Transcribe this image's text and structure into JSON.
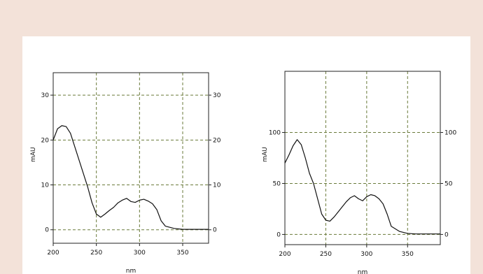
{
  "chart_data": [
    {
      "type": "line",
      "title": "",
      "xlabel": "nm",
      "ylabel": "mAU",
      "xlim": [
        200,
        380
      ],
      "ylim": [
        -3,
        35
      ],
      "xticks": [
        200,
        250,
        300,
        350
      ],
      "yticks": [
        0,
        10,
        20,
        30
      ],
      "grid": true,
      "series": [
        {
          "x": [
            200,
            205,
            210,
            215,
            220,
            225,
            230,
            235,
            240,
            245,
            250,
            255,
            260,
            265,
            270,
            275,
            280,
            285,
            290,
            295,
            300,
            305,
            310,
            315,
            320,
            325,
            330,
            340,
            350,
            360,
            370,
            380
          ],
          "values": [
            20,
            22.5,
            23.2,
            23,
            21.5,
            18.5,
            15.5,
            12.5,
            9.5,
            6,
            3.5,
            2.8,
            3.5,
            4.3,
            5,
            6,
            6.6,
            7,
            6.3,
            6.1,
            6.6,
            6.8,
            6.4,
            5.8,
            4.5,
            2,
            0.8,
            0.3,
            0.1,
            0.1,
            0.1,
            0.1
          ]
        }
      ]
    },
    {
      "type": "line",
      "title": "",
      "xlabel": "nm",
      "ylabel": "mAU",
      "xlim": [
        200,
        390
      ],
      "ylim": [
        -10,
        160
      ],
      "xticks": [
        200,
        250,
        300,
        350
      ],
      "yticks": [
        0,
        50,
        100
      ],
      "grid": true,
      "series": [
        {
          "x": [
            200,
            205,
            210,
            215,
            220,
            225,
            230,
            235,
            240,
            245,
            250,
            255,
            260,
            265,
            270,
            275,
            280,
            285,
            290,
            295,
            300,
            305,
            310,
            315,
            320,
            325,
            330,
            340,
            350,
            360,
            370,
            380,
            390
          ],
          "values": [
            70,
            78,
            87,
            93,
            88,
            75,
            60,
            50,
            35,
            20,
            14,
            13,
            17,
            22,
            27,
            32,
            36,
            38,
            35,
            33,
            37,
            39,
            38,
            35,
            30,
            20,
            8,
            3,
            1,
            0.5,
            0.5,
            0.5,
            0.5
          ]
        }
      ]
    }
  ]
}
